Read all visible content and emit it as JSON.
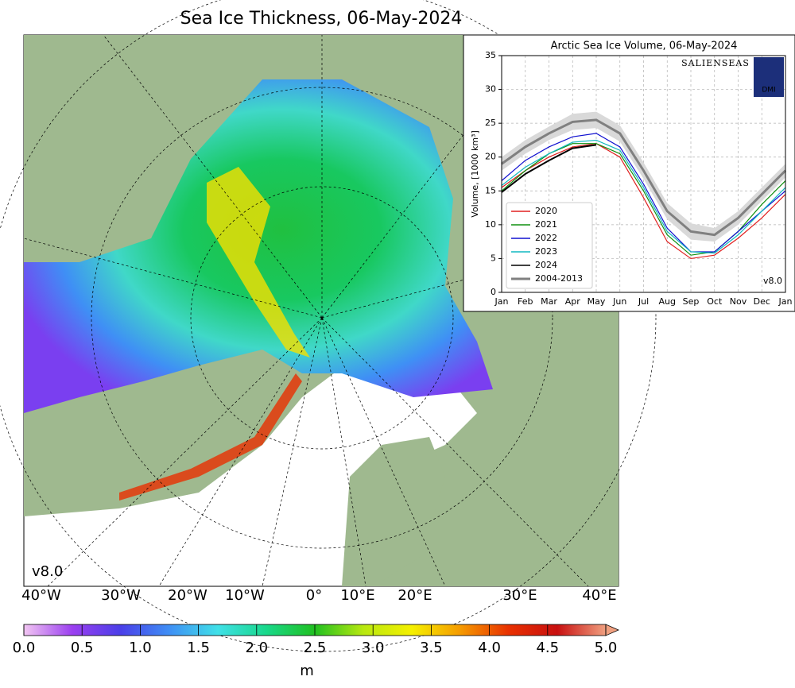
{
  "title": "Sea Ice Thickness, 06-May-2024",
  "map": {
    "version": "v8.0",
    "longitude_labels": [
      "40°W",
      "30°W",
      "20°W",
      "10°W",
      "0°",
      "10°E",
      "20°E",
      "30°E",
      "40°E"
    ]
  },
  "colorbar": {
    "unit": "m",
    "colors": [
      "#f2c6f2",
      "#9b3ff0",
      "#4a3fe8",
      "#3f8ff5",
      "#40e0e8",
      "#18d88a",
      "#20c020",
      "#b8e810",
      "#f5f000",
      "#f59a00",
      "#e83000",
      "#c81010",
      "#f0a080"
    ],
    "range": [
      0,
      5
    ],
    "ticks": [
      {
        "value": 0,
        "label": "0.0"
      },
      0.5,
      {
        "value": 1,
        "label": "1.0"
      },
      1.5,
      {
        "value": 2,
        "label": "2.0"
      },
      2.5,
      {
        "value": 3,
        "label": "3.0"
      },
      3.5,
      {
        "value": 4,
        "label": "4.0"
      },
      4.5,
      {
        "value": 5,
        "label": "5.0"
      }
    ]
  },
  "chart_data": {
    "type": "line",
    "title": "Arctic Sea Ice Volume, 06-May-2024",
    "ylabel": "Volume, [1000 km³]",
    "logos": [
      "SALIENSEAS",
      "DMI"
    ],
    "version": "v8.0",
    "categories": [
      "Jan",
      "Feb",
      "Mar",
      "Apr",
      "May",
      "Jun",
      "Jul",
      "Aug",
      "Sep",
      "Oct",
      "Nov",
      "Dec",
      "Jan"
    ],
    "ylim": [
      0,
      35
    ],
    "yticks": [
      0,
      5,
      10,
      15,
      20,
      25,
      30,
      35
    ],
    "grid": true,
    "legend": "lower left",
    "band": {
      "color": "#d9d9d9",
      "lower": [
        18,
        20.5,
        22.5,
        24,
        24.3,
        22.3,
        16.8,
        10.8,
        7.8,
        7.5,
        10,
        13.5,
        17
      ],
      "upper": [
        20,
        22.5,
        24.5,
        26.4,
        26.7,
        24.7,
        19.2,
        13.2,
        10.2,
        9.5,
        12,
        15.5,
        19
      ]
    },
    "series": [
      {
        "name": "2020",
        "color": "#e02020",
        "values": [
          15.5,
          18,
          20,
          21.5,
          22,
          20,
          14,
          7.5,
          5,
          5.5,
          8,
          11,
          14.5
        ]
      },
      {
        "name": "2021",
        "color": "#109010",
        "values": [
          15,
          18,
          20.5,
          22,
          22,
          20.5,
          15,
          8.5,
          5.5,
          6,
          9,
          13,
          16.5
        ]
      },
      {
        "name": "2022",
        "color": "#1010d0",
        "values": [
          16.5,
          19.5,
          21.5,
          23,
          23.5,
          21.5,
          16,
          9.5,
          6,
          6,
          9,
          12,
          15
        ]
      },
      {
        "name": "2023",
        "color": "#10b8c0",
        "values": [
          15.8,
          18.5,
          20.5,
          22.2,
          22.5,
          21,
          15.5,
          9,
          6,
          5.8,
          8.5,
          12,
          15.5
        ]
      },
      {
        "name": "2024",
        "color": "#000000",
        "values": [
          14.8,
          17.5,
          19.5,
          21.3,
          21.8,
          null,
          null,
          null,
          null,
          null,
          null,
          null,
          null
        ]
      },
      {
        "name": "2004-2013",
        "color": "#808080",
        "values": [
          19,
          21.5,
          23.5,
          25.2,
          25.5,
          23.5,
          18,
          12,
          9,
          8.5,
          11,
          14.5,
          18
        ]
      }
    ]
  }
}
